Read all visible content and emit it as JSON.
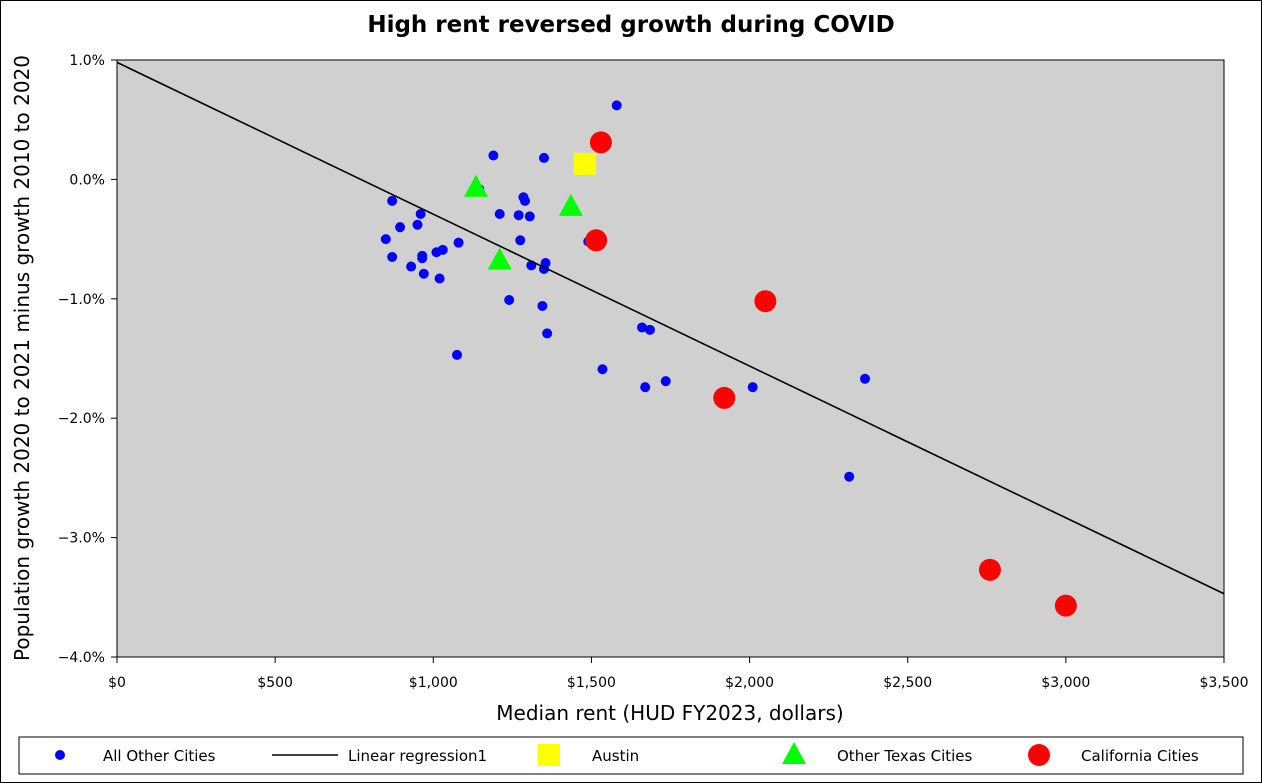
{
  "chart_data": {
    "type": "scatter",
    "title": "High rent reversed growth during COVID",
    "xlabel": "Median rent (HUD FY2023, dollars)",
    "ylabel": "Population growth 2020 to 2021 minus growth 2010 to 2020",
    "xlim": [
      0,
      3500
    ],
    "ylim": [
      -4.0,
      1.0
    ],
    "x_ticks": [
      "$0",
      "$500",
      "$1,000",
      "$1,500",
      "$2,000",
      "$2,500",
      "$3,000",
      "$3,500"
    ],
    "y_ticks": [
      "1.0%",
      "0.0%",
      "−1.0%",
      "−2.0%",
      "−3.0%",
      "−4.0%"
    ],
    "plot_background": "#d0d0d0",
    "grid": false,
    "legend_position": "bottom",
    "series": [
      {
        "name": "All Other Cities",
        "marker": "small-circle",
        "color": "#0000ff",
        "points": [
          [
            1580,
            0.62
          ],
          [
            1190,
            0.2
          ],
          [
            1350,
            0.18
          ],
          [
            1485,
            0.08
          ],
          [
            1145,
            -0.08
          ],
          [
            870,
            -0.18
          ],
          [
            1285,
            -0.15
          ],
          [
            1290,
            -0.18
          ],
          [
            1210,
            -0.29
          ],
          [
            1270,
            -0.3
          ],
          [
            1305,
            -0.31
          ],
          [
            960,
            -0.29
          ],
          [
            895,
            -0.4
          ],
          [
            950,
            -0.38
          ],
          [
            850,
            -0.5
          ],
          [
            1080,
            -0.53
          ],
          [
            1275,
            -0.51
          ],
          [
            1490,
            -0.52
          ],
          [
            1030,
            -0.59
          ],
          [
            1010,
            -0.61
          ],
          [
            965,
            -0.64
          ],
          [
            965,
            -0.66
          ],
          [
            870,
            -0.65
          ],
          [
            930,
            -0.73
          ],
          [
            970,
            -0.79
          ],
          [
            1020,
            -0.83
          ],
          [
            1310,
            -0.72
          ],
          [
            1355,
            -0.7
          ],
          [
            1350,
            -0.75
          ],
          [
            1240,
            -1.01
          ],
          [
            1345,
            -1.06
          ],
          [
            1360,
            -1.29
          ],
          [
            1660,
            -1.24
          ],
          [
            1685,
            -1.26
          ],
          [
            1075,
            -1.47
          ],
          [
            1535,
            -1.59
          ],
          [
            1735,
            -1.69
          ],
          [
            1670,
            -1.74
          ],
          [
            2010,
            -1.74
          ],
          [
            2365,
            -1.67
          ],
          [
            2315,
            -2.49
          ]
        ]
      },
      {
        "name": "Austin",
        "marker": "square",
        "color": "#ffff00",
        "points": [
          [
            1480,
            0.13
          ]
        ]
      },
      {
        "name": "Other Texas Cities",
        "marker": "triangle",
        "color": "#00ff00",
        "points": [
          [
            1135,
            -0.07
          ],
          [
            1435,
            -0.23
          ],
          [
            1210,
            -0.68
          ]
        ]
      },
      {
        "name": "California Cities",
        "marker": "large-circle",
        "color": "#ff0000",
        "points": [
          [
            1530,
            0.31
          ],
          [
            1515,
            -0.51
          ],
          [
            2050,
            -1.02
          ],
          [
            1920,
            -1.83
          ],
          [
            2760,
            -3.27
          ],
          [
            3000,
            -3.57
          ]
        ]
      }
    ],
    "regression": {
      "name": "Linear regression1",
      "color": "#000000",
      "x": [
        0,
        3500
      ],
      "y": [
        0.98,
        -3.47
      ]
    },
    "legend": [
      {
        "label": "All Other Cities",
        "marker": "small-circle",
        "color": "#0000ff"
      },
      {
        "label": "Linear regression1",
        "marker": "line",
        "color": "#000000"
      },
      {
        "label": "Austin",
        "marker": "square",
        "color": "#ffff00"
      },
      {
        "label": "Other Texas Cities",
        "marker": "triangle",
        "color": "#00ff00"
      },
      {
        "label": "California Cities",
        "marker": "large-circle",
        "color": "#ff0000"
      }
    ]
  }
}
